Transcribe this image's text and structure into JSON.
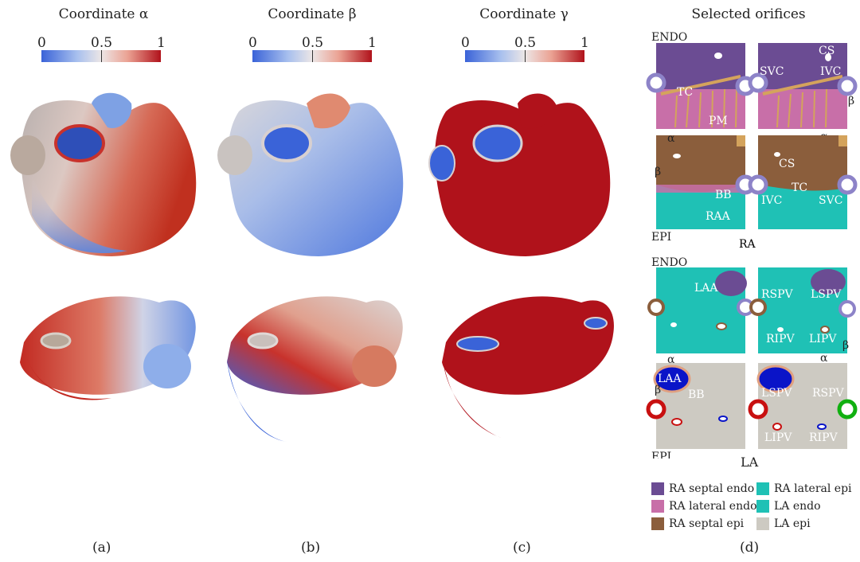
{
  "titles": {
    "a": "Coordinate α",
    "b": "Coordinate  β",
    "c": "Coordinate γ",
    "d": "Selected orifices"
  },
  "colorbar_ticks": [
    "0",
    "0.5",
    "1"
  ],
  "panel_labels": [
    "(a)",
    "(b)",
    "(c)",
    "(d)"
  ],
  "maps": {
    "endo_label": "ENDO",
    "epi_label": "EPI",
    "ra_label": "RA",
    "la_label": "LA",
    "axis_alpha": "α",
    "axis_beta": "β",
    "ra_endo_left": [
      "TC",
      "PM"
    ],
    "ra_endo_right": [
      "CS",
      "SVC",
      "IVC"
    ],
    "ra_epi_left": [
      "BB",
      "RAA"
    ],
    "ra_epi_right": [
      "CS",
      "TC",
      "IVC",
      "SVC"
    ],
    "la_endo_left": [
      "LAA"
    ],
    "la_endo_right": [
      "RSPV",
      "LSPV",
      "RIPV",
      "LIPV"
    ],
    "la_epi_left": [
      "LAA",
      "BB"
    ],
    "la_epi_right": [
      "LSPV",
      "RSPV",
      "LIPV",
      "RIPV"
    ]
  },
  "legend": [
    {
      "label": "RA septal endo",
      "color": "#6b4c93"
    },
    {
      "label": "RA lateral epi",
      "color": "#1fc1b5"
    },
    {
      "label": "RA lateral endo",
      "color": "#c86fa8"
    },
    {
      "label": "LA endo",
      "color": "#1fc1b5"
    },
    {
      "label": "RA septal epi",
      "color": "#8b5e3c"
    },
    {
      "label": "LA epi",
      "color": "#cdcac2"
    }
  ],
  "colors": {
    "cold": "#3a63d8",
    "mid": "#e8e4e4",
    "hot": "#b0121b",
    "ra_septal_endo": "#6b4c93",
    "ra_lateral_endo": "#c86fa8",
    "ra_septal_epi": "#8b5e3c",
    "teal": "#1fc1b5",
    "la_epi": "#cdcac2",
    "trim": "#e0a050",
    "la_blue": "#0a14c8",
    "la_red": "#c81010",
    "la_green": "#10b010",
    "orifice": "#8d83c8"
  }
}
